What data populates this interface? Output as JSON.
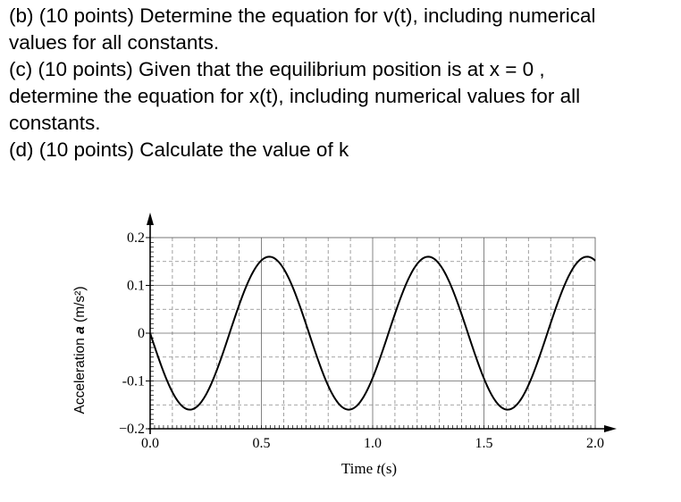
{
  "text_lines": [
    "(b) (10 points) Determine the equation for v(t), including numerical",
    "values for all constants.",
    "(c) (10 points) Given that the equilibrium position is at x = 0 ,",
    "determine the equation for x(t), including numerical values for all",
    "constants.",
    "(d) (10 points) Calculate the value of k"
  ],
  "chart_data": {
    "type": "line",
    "ylabel_text": "Acceleration",
    "ylabel_symbol": "a",
    "ylabel_unit": "(m/s²)",
    "xlabel_text": "Time",
    "xlabel_symbol": "t",
    "xlabel_unit": "(s)",
    "xlim": [
      0,
      2.0
    ],
    "ylim": [
      -0.2,
      0.2
    ],
    "xticks": [
      "0.0",
      "0.5",
      "1.0",
      "1.5",
      "2.0"
    ],
    "xtick_values": [
      0,
      0.5,
      1.0,
      1.5,
      2.0
    ],
    "yticks": [
      "0.2",
      "0.1",
      "0",
      "-0.1",
      "−0.2"
    ],
    "ytick_values": [
      0.2,
      0.1,
      0,
      -0.1,
      -0.2
    ],
    "grid": true,
    "curve": {
      "form": "a(t) = A·sin(2π(t − t0)/T)",
      "amplitude": 0.16,
      "period": 0.714,
      "t0": 0.357,
      "first_minimum_t": 0.18,
      "first_maximum_t": 0.536,
      "extent": [
        0,
        2.0
      ]
    }
  }
}
